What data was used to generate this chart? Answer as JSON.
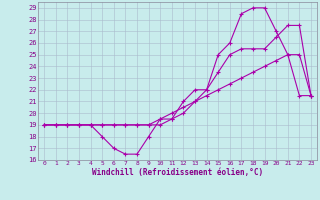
{
  "xlabel": "Windchill (Refroidissement éolien,°C)",
  "xlim": [
    -0.5,
    23.5
  ],
  "ylim": [
    16,
    29.5
  ],
  "yticks": [
    16,
    17,
    18,
    19,
    20,
    21,
    22,
    23,
    24,
    25,
    26,
    27,
    28,
    29
  ],
  "xticks": [
    0,
    1,
    2,
    3,
    4,
    5,
    6,
    7,
    8,
    9,
    10,
    11,
    12,
    13,
    14,
    15,
    16,
    17,
    18,
    19,
    20,
    21,
    22,
    23
  ],
  "bg_color": "#c8ecec",
  "line_color": "#aa00aa",
  "grid_color": "#aabbcc",
  "curve1_x": [
    0,
    1,
    2,
    3,
    4,
    5,
    6,
    7,
    8,
    9,
    10,
    11,
    12,
    13,
    14,
    15,
    16,
    17,
    18,
    19,
    20,
    21,
    22,
    23
  ],
  "curve1_y": [
    19,
    19,
    19,
    19,
    19,
    18,
    17,
    16.5,
    16.5,
    18,
    19.5,
    19.5,
    21,
    22,
    22,
    25,
    26,
    28.5,
    29,
    29,
    27,
    25,
    21.5,
    21.5
  ],
  "curve2_x": [
    0,
    1,
    2,
    3,
    4,
    5,
    6,
    7,
    8,
    9,
    10,
    11,
    12,
    13,
    14,
    15,
    16,
    17,
    18,
    19,
    20,
    21,
    22,
    23
  ],
  "curve2_y": [
    19,
    19,
    19,
    19,
    19,
    19,
    19,
    19,
    19,
    19,
    19,
    19.5,
    20,
    21,
    22,
    23.5,
    25,
    25.5,
    25.5,
    25.5,
    26.5,
    27.5,
    27.5,
    21.5
  ],
  "curve3_x": [
    0,
    1,
    2,
    3,
    4,
    5,
    6,
    7,
    8,
    9,
    10,
    11,
    12,
    13,
    14,
    15,
    16,
    17,
    18,
    19,
    20,
    21,
    22,
    23
  ],
  "curve3_y": [
    19,
    19,
    19,
    19,
    19,
    19,
    19,
    19,
    19,
    19,
    19.5,
    20,
    20.5,
    21,
    21.5,
    22,
    22.5,
    23,
    23.5,
    24,
    24.5,
    25,
    25,
    21.5
  ]
}
